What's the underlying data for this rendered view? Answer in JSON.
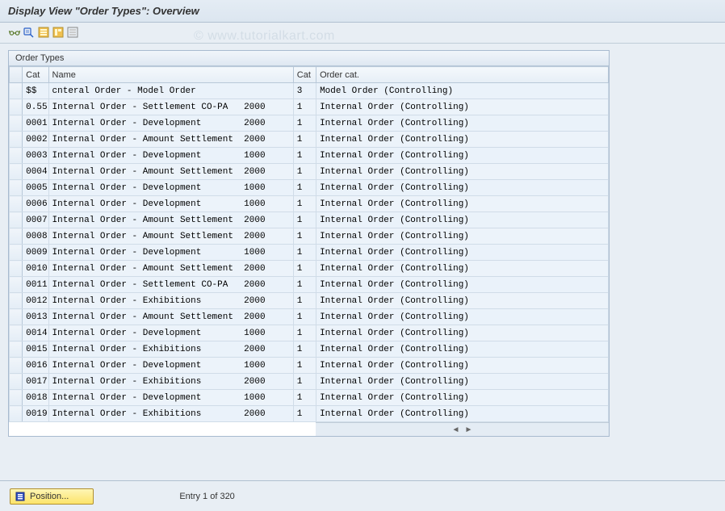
{
  "title": "Display View \"Order Types\": Overview",
  "watermark": "© www.tutorialkart.com",
  "panel_header": "Order Types",
  "columns": {
    "sel": "",
    "cat1": "Cat",
    "name": "Name",
    "cat2": "Cat",
    "ocat": "Order cat."
  },
  "rows": [
    {
      "cat1": "$$",
      "name": "cnteral Order - Model Order",
      "cat2": "3",
      "ocat": "Model Order (Controlling)"
    },
    {
      "cat1": "0.55",
      "name": "Internal Order - Settlement CO-PA   2000",
      "cat2": "1",
      "ocat": "Internal Order (Controlling)"
    },
    {
      "cat1": "0001",
      "name": "Internal Order - Development        2000",
      "cat2": "1",
      "ocat": "Internal Order (Controlling)"
    },
    {
      "cat1": "0002",
      "name": "Internal Order - Amount Settlement  2000",
      "cat2": "1",
      "ocat": "Internal Order (Controlling)"
    },
    {
      "cat1": "0003",
      "name": "Internal Order - Development        1000",
      "cat2": "1",
      "ocat": "Internal Order (Controlling)"
    },
    {
      "cat1": "0004",
      "name": "Internal Order - Amount Settlement  2000",
      "cat2": "1",
      "ocat": "Internal Order (Controlling)"
    },
    {
      "cat1": "0005",
      "name": "Internal Order - Development        1000",
      "cat2": "1",
      "ocat": "Internal Order (Controlling)"
    },
    {
      "cat1": "0006",
      "name": "Internal Order - Development        1000",
      "cat2": "1",
      "ocat": "Internal Order (Controlling)"
    },
    {
      "cat1": "0007",
      "name": "Internal Order - Amount Settlement  2000",
      "cat2": "1",
      "ocat": "Internal Order (Controlling)"
    },
    {
      "cat1": "0008",
      "name": "Internal Order - Amount Settlement  2000",
      "cat2": "1",
      "ocat": "Internal Order (Controlling)"
    },
    {
      "cat1": "0009",
      "name": "Internal Order - Development        1000",
      "cat2": "1",
      "ocat": "Internal Order (Controlling)"
    },
    {
      "cat1": "0010",
      "name": "Internal Order - Amount Settlement  2000",
      "cat2": "1",
      "ocat": "Internal Order (Controlling)"
    },
    {
      "cat1": "0011",
      "name": "Internal Order - Settlement CO-PA   2000",
      "cat2": "1",
      "ocat": "Internal Order (Controlling)"
    },
    {
      "cat1": "0012",
      "name": "Internal Order - Exhibitions        2000",
      "cat2": "1",
      "ocat": "Internal Order (Controlling)"
    },
    {
      "cat1": "0013",
      "name": "Internal Order - Amount Settlement  2000",
      "cat2": "1",
      "ocat": "Internal Order (Controlling)"
    },
    {
      "cat1": "0014",
      "name": "Internal Order - Development        1000",
      "cat2": "1",
      "ocat": "Internal Order (Controlling)"
    },
    {
      "cat1": "0015",
      "name": "Internal Order - Exhibitions        2000",
      "cat2": "1",
      "ocat": "Internal Order (Controlling)"
    },
    {
      "cat1": "0016",
      "name": "Internal Order - Development        1000",
      "cat2": "1",
      "ocat": "Internal Order (Controlling)"
    },
    {
      "cat1": "0017",
      "name": "Internal Order - Exhibitions        2000",
      "cat2": "1",
      "ocat": "Internal Order (Controlling)"
    },
    {
      "cat1": "0018",
      "name": "Internal Order - Development        1000",
      "cat2": "1",
      "ocat": "Internal Order (Controlling)"
    },
    {
      "cat1": "0019",
      "name": "Internal Order - Exhibitions        2000",
      "cat2": "1",
      "ocat": "Internal Order (Controlling)"
    }
  ],
  "footer": {
    "position_label": "Position...",
    "entry_label": "Entry 1 of 320"
  },
  "colors": {
    "background": "#e8eef4",
    "row_bg": "#eaf2fa",
    "border": "#b8c8d8",
    "button_bg": "#fce46a"
  }
}
